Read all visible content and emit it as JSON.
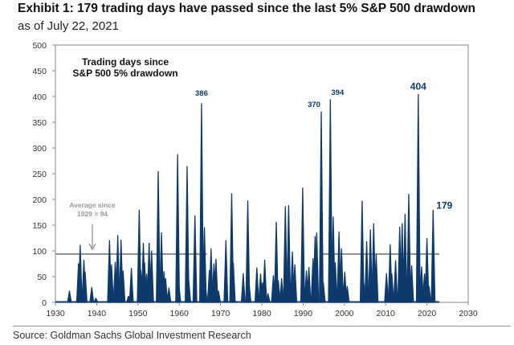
{
  "title": "Exhibit 1: 179 trading days have passed since the last 5% S&P 500 drawdown",
  "subtitle": "as of July 22, 2021",
  "source": "Source: Goldman Sachs Global Investment Research",
  "colors": {
    "series": "#0d3a6b",
    "average_line": "#8c8c8c",
    "axis": "#888888"
  },
  "chart_data": {
    "type": "area",
    "title": "Trading days since S&P 500 5% drawdown",
    "title_lines": [
      "Trading days since",
      "S&P 500 5% drawdown"
    ],
    "xlabel": "",
    "ylabel": "",
    "xlim": [
      1930,
      2030
    ],
    "ylim": [
      0,
      500
    ],
    "xticks": [
      1930,
      1940,
      1950,
      1960,
      1970,
      1980,
      1990,
      2000,
      2010,
      2020,
      2030
    ],
    "yticks": [
      0,
      50,
      100,
      150,
      200,
      250,
      300,
      350,
      400,
      450,
      500
    ],
    "grid": false,
    "average": {
      "value": 94,
      "label_lines": [
        "Average since",
        "1929 = 94"
      ],
      "segments": [
        [
          1930,
          1966.7
        ],
        [
          1994.6,
          2023
        ]
      ]
    },
    "peak_labels": [
      {
        "x": 1965.4,
        "y": 386,
        "text": "386"
      },
      {
        "x": 1994.4,
        "y": 370,
        "text": "370"
      },
      {
        "x": 1996.6,
        "y": 394,
        "text": "394"
      },
      {
        "x": 2017.9,
        "y": 404,
        "text": "404"
      },
      {
        "x": 2021.5,
        "y": 179,
        "text": "179"
      }
    ],
    "points": [
      [
        1933.4,
        22
      ],
      [
        1935.6,
        75
      ],
      [
        1936.0,
        111
      ],
      [
        1936.9,
        82
      ],
      [
        1937.2,
        59
      ],
      [
        1938.8,
        29
      ],
      [
        1939.8,
        8
      ],
      [
        1943.1,
        120
      ],
      [
        1943.6,
        73
      ],
      [
        1944.5,
        78
      ],
      [
        1945.1,
        130
      ],
      [
        1945.9,
        121
      ],
      [
        1946.4,
        61
      ],
      [
        1947.7,
        12
      ],
      [
        1948.4,
        66
      ],
      [
        1950.3,
        179
      ],
      [
        1950.7,
        62
      ],
      [
        1951.3,
        115
      ],
      [
        1951.6,
        77
      ],
      [
        1952.1,
        55
      ],
      [
        1952.7,
        115
      ],
      [
        1953.3,
        100
      ],
      [
        1954.9,
        254
      ],
      [
        1955.7,
        135
      ],
      [
        1956.3,
        60
      ],
      [
        1956.7,
        46
      ],
      [
        1957.5,
        28
      ],
      [
        1959.6,
        287
      ],
      [
        1959.9,
        35
      ],
      [
        1961.9,
        264
      ],
      [
        1962.3,
        42
      ],
      [
        1963.8,
        168
      ],
      [
        1965.4,
        386
      ],
      [
        1966.1,
        145
      ],
      [
        1966.4,
        25
      ],
      [
        1967.3,
        62
      ],
      [
        1967.7,
        104
      ],
      [
        1968.4,
        75
      ],
      [
        1968.9,
        84
      ],
      [
        1969.5,
        22
      ],
      [
        1971.3,
        120
      ],
      [
        1972.7,
        211
      ],
      [
        1973.1,
        76
      ],
      [
        1975.5,
        56
      ],
      [
        1976.6,
        197
      ],
      [
        1976.9,
        38
      ],
      [
        1978.8,
        67
      ],
      [
        1979.7,
        55
      ],
      [
        1980.2,
        38
      ],
      [
        1980.7,
        82
      ],
      [
        1981.5,
        17
      ],
      [
        1982.8,
        52
      ],
      [
        1983.5,
        156
      ],
      [
        1984.0,
        42
      ],
      [
        1984.8,
        46
      ],
      [
        1985.7,
        186
      ],
      [
        1986.5,
        188
      ],
      [
        1987.4,
        98
      ],
      [
        1988.0,
        73
      ],
      [
        1989.9,
        222
      ],
      [
        1990.8,
        61
      ],
      [
        1991.4,
        68
      ],
      [
        1992.4,
        85
      ],
      [
        1992.9,
        128
      ],
      [
        1993.3,
        135
      ],
      [
        1994.4,
        370
      ],
      [
        1994.9,
        38
      ],
      [
        1996.6,
        394
      ],
      [
        1997.3,
        166
      ],
      [
        1997.8,
        77
      ],
      [
        1998.7,
        137
      ],
      [
        1999.3,
        104
      ],
      [
        2000.1,
        59
      ],
      [
        2000.7,
        31
      ],
      [
        2004.3,
        197
      ],
      [
        2004.7,
        38
      ],
      [
        2005.4,
        118
      ],
      [
        2006.3,
        141
      ],
      [
        2007.1,
        153
      ],
      [
        2007.7,
        93
      ],
      [
        2010.2,
        56
      ],
      [
        2011.1,
        112
      ],
      [
        2011.5,
        55
      ],
      [
        2012.4,
        81
      ],
      [
        2013.4,
        146
      ],
      [
        2014.0,
        153
      ],
      [
        2014.7,
        171
      ],
      [
        2015.6,
        210
      ],
      [
        2016.3,
        71
      ],
      [
        2017.9,
        404
      ],
      [
        2018.7,
        69
      ],
      [
        2019.4,
        55
      ],
      [
        2020.0,
        124
      ],
      [
        2020.5,
        31
      ],
      [
        2021.5,
        179
      ]
    ]
  }
}
